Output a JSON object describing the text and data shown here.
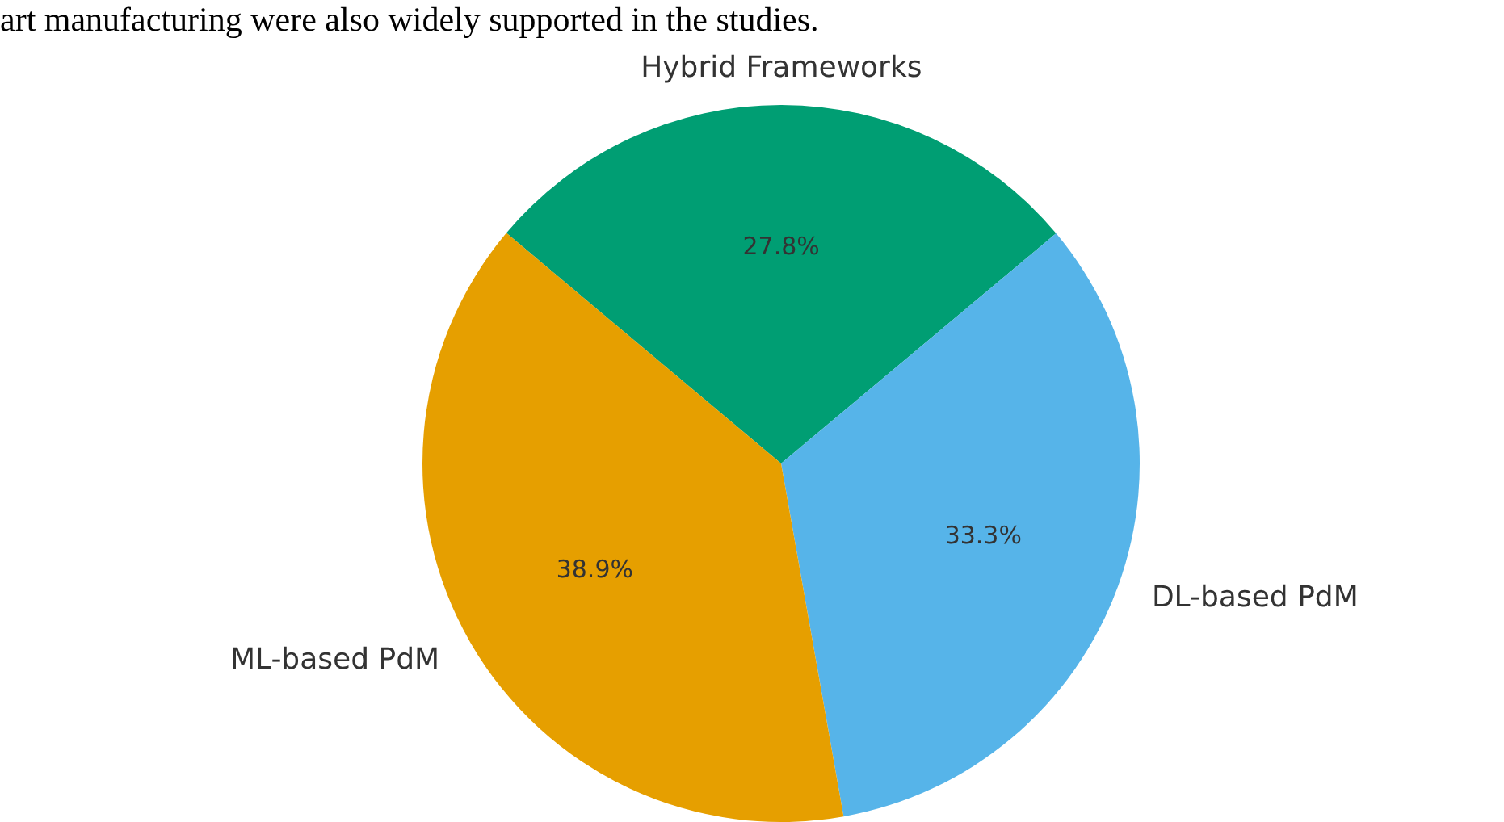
{
  "chart_data": {
    "type": "pie",
    "categories": [
      "Hybrid Frameworks",
      "DL-based PdM",
      "ML-based PdM"
    ],
    "values": [
      27.8,
      33.3,
      38.9
    ],
    "colors": [
      "#009e73",
      "#56b4e9",
      "#e69f00"
    ],
    "value_labels": [
      "27.8%",
      "33.3%",
      "38.9%"
    ],
    "annotations": [
      "art manufacturing were also widely supported in the studies."
    ],
    "legend": false
  }
}
